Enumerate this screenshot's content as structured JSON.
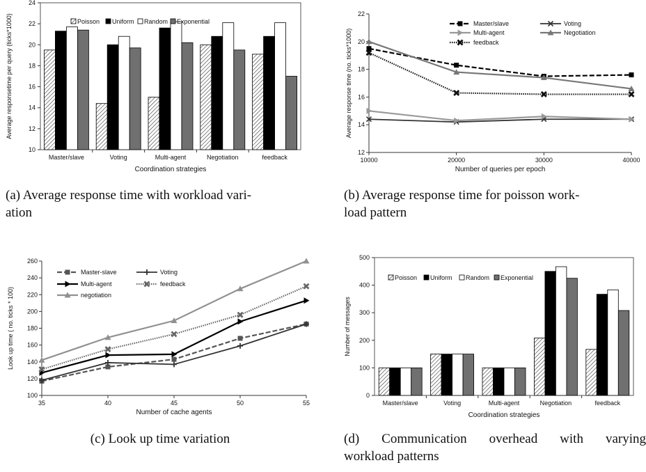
{
  "chart_data": [
    {
      "id": "a",
      "type": "bar",
      "caption": "(a) Average response time with workload variation",
      "caption_lines": [
        "(a) Average response time with workload vari-",
        "ation"
      ],
      "xlabel": "Coordination strategies",
      "ylabel": "Average responsetime per query (ticks*1000)",
      "ylim": [
        10,
        24
      ],
      "yticks": [
        10,
        12,
        14,
        16,
        18,
        20,
        22,
        24
      ],
      "grid": false,
      "legend": "top",
      "categories": [
        "Master/slave",
        "Voting",
        "Multi-agent",
        "Negotiation",
        "feedback"
      ],
      "series": [
        {
          "name": "Poisson",
          "style": "hatch",
          "values": [
            19.5,
            14.4,
            15.0,
            20.0,
            19.1
          ]
        },
        {
          "name": "Uniform",
          "color": "#000000",
          "values": [
            21.3,
            20.0,
            21.6,
            20.8,
            20.8
          ]
        },
        {
          "name": "Random",
          "color": "#ffffff",
          "values": [
            21.7,
            20.8,
            22.2,
            22.1,
            22.1
          ]
        },
        {
          "name": "Exponential",
          "color": "#707070",
          "values": [
            21.4,
            19.7,
            20.2,
            19.5,
            17.0
          ]
        }
      ]
    },
    {
      "id": "b",
      "type": "line",
      "caption": "(b) Average response time for poisson workload pattern",
      "caption_lines": [
        "(b) Average response time for poisson work-",
        "load pattern"
      ],
      "xlabel": "Number of queries per epoch",
      "ylabel": "Average response time (no. ticks*1000)",
      "x": [
        10000,
        20000,
        30000,
        40000
      ],
      "xticks": [
        10000,
        20000,
        30000,
        40000
      ],
      "xlim": [
        10000,
        40000
      ],
      "ylim": [
        12,
        22
      ],
      "yticks": [
        12,
        14,
        16,
        18,
        20,
        22
      ],
      "grid": false,
      "legend": "top",
      "series": [
        {
          "name": "Master/slave",
          "color": "#000000",
          "dash": "7,3",
          "width": 2.2,
          "marker": "square",
          "values": [
            19.5,
            18.3,
            17.5,
            17.6
          ]
        },
        {
          "name": "Voting",
          "color": "#333333",
          "dash": "",
          "width": 1.8,
          "marker": "x",
          "values": [
            14.4,
            14.2,
            14.4,
            14.4
          ]
        },
        {
          "name": "Multi-agent",
          "color": "#999999",
          "dash": "",
          "width": 2.2,
          "marker": "tri-right",
          "values": [
            15.0,
            14.3,
            14.6,
            14.4
          ]
        },
        {
          "name": "Negotiation",
          "color": "#777777",
          "dash": "",
          "width": 2.2,
          "marker": "triangle",
          "values": [
            20.0,
            17.8,
            17.4,
            16.6
          ]
        },
        {
          "name": "feedback",
          "color": "#111111",
          "dash": "1.5,1.5",
          "width": 2.2,
          "marker": "bigx",
          "values": [
            19.2,
            16.3,
            16.2,
            16.2
          ]
        }
      ]
    },
    {
      "id": "c",
      "type": "line",
      "caption": "(c) Look up time variation",
      "caption_lines": [
        "(c) Look up time variation"
      ],
      "xlabel": "Number of cache agents",
      "ylabel": "Look up  time ( no. ticks * 100)",
      "x": [
        35,
        40,
        45,
        50,
        55
      ],
      "xticks": [
        35,
        40,
        45,
        50,
        55
      ],
      "xlim": [
        35,
        55
      ],
      "ylim": [
        100,
        260
      ],
      "yticks": [
        100,
        120,
        140,
        160,
        180,
        200,
        220,
        240,
        260
      ],
      "grid": false,
      "legend": "top-left",
      "series": [
        {
          "name": "Master-slave",
          "color": "#555555",
          "dash": "7,3",
          "width": 2.2,
          "marker": "square",
          "values": [
            117,
            134,
            143,
            168,
            185
          ]
        },
        {
          "name": "Voting",
          "color": "#333333",
          "dash": "",
          "width": 1.8,
          "marker": "plus",
          "values": [
            118,
            139,
            137,
            159,
            185
          ]
        },
        {
          "name": "Multi-agent",
          "color": "#000000",
          "dash": "",
          "width": 2.2,
          "marker": "tri-right",
          "values": [
            127,
            148,
            149,
            188,
            213
          ]
        },
        {
          "name": "feedback",
          "color": "#666666",
          "dash": "1.5,1.5",
          "width": 2.2,
          "marker": "bigx",
          "values": [
            131,
            155,
            173,
            196,
            230
          ]
        },
        {
          "name": "negotiation",
          "color": "#909090",
          "dash": "",
          "width": 2.2,
          "marker": "triangle",
          "values": [
            142,
            169,
            189,
            227,
            260
          ]
        }
      ]
    },
    {
      "id": "d",
      "type": "bar",
      "caption": "(d) Communication overhead with varying workload patterns",
      "caption_lines": [
        "(d) Communication overhead with varying",
        "workload patterns"
      ],
      "xlabel": "Coordination strategies",
      "ylabel": "Number of messages",
      "ylim": [
        0,
        500
      ],
      "yticks": [
        0,
        100,
        200,
        300,
        400,
        500
      ],
      "grid": false,
      "legend": "top",
      "categories": [
        "Master/slave",
        "Voting",
        "Multi-agent",
        "Negotiation",
        "feedback"
      ],
      "series": [
        {
          "name": "Poisson",
          "style": "hatch",
          "values": [
            100,
            150,
            100,
            208,
            167
          ]
        },
        {
          "name": "Uniform",
          "color": "#000000",
          "values": [
            100,
            150,
            100,
            450,
            367
          ]
        },
        {
          "name": "Random",
          "color": "#ffffff",
          "values": [
            100,
            150,
            100,
            467,
            383
          ]
        },
        {
          "name": "Exponential",
          "color": "#707070",
          "values": [
            100,
            150,
            100,
            425,
            308
          ]
        }
      ]
    }
  ]
}
